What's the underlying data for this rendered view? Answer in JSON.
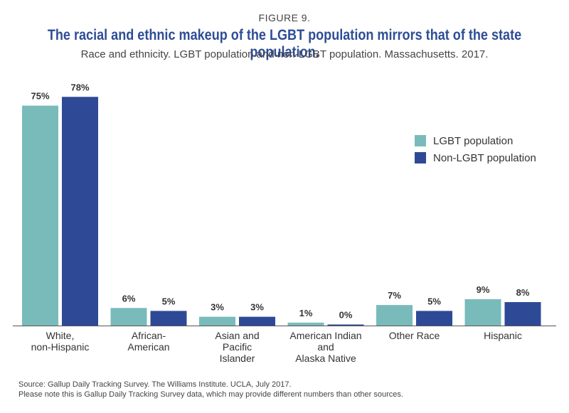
{
  "figure_label": "FIGURE 9.",
  "title": "The racial and ethnic makeup of the LGBT population mirrors that of the state population.",
  "subtitle": "Race and ethnicity. LGBT population and non-LGBT population. Massachusetts. 2017.",
  "source_lines": [
    "Source: Gallup Daily Tracking Survey. The Williams Institute. UCLA, July 2017.",
    "Please note this is Gallup Daily Tracking Survey data, which may provide different numbers than other sources."
  ],
  "colors": {
    "lgbt": "#79bbbb",
    "non_lgbt": "#2e4a96",
    "title": "#2e4d96"
  },
  "chart_data": {
    "type": "bar",
    "title": "The racial and ethnic makeup of the LGBT population mirrors that of the state population.",
    "xlabel": "",
    "ylabel": "",
    "ylim": [
      0,
      80
    ],
    "grid": false,
    "legend_position": "right",
    "categories": [
      [
        "White,",
        "non-Hispanic"
      ],
      [
        "African-",
        "American"
      ],
      [
        "Asian and",
        "Pacific",
        "Islander"
      ],
      [
        "American Indian",
        "and",
        "Alaska Native"
      ],
      [
        "Other Race"
      ],
      [
        "Hispanic"
      ]
    ],
    "series": [
      {
        "name": "LGBT population",
        "values": [
          75,
          6,
          3,
          1,
          7,
          9
        ],
        "labels": [
          "75%",
          "6%",
          "3%",
          "1%",
          "7%",
          "9%"
        ]
      },
      {
        "name": "Non-LGBT population",
        "values": [
          78,
          5,
          3,
          0,
          5,
          8
        ],
        "labels": [
          "78%",
          "5%",
          "3%",
          "0%",
          "5%",
          "8%"
        ]
      }
    ]
  }
}
